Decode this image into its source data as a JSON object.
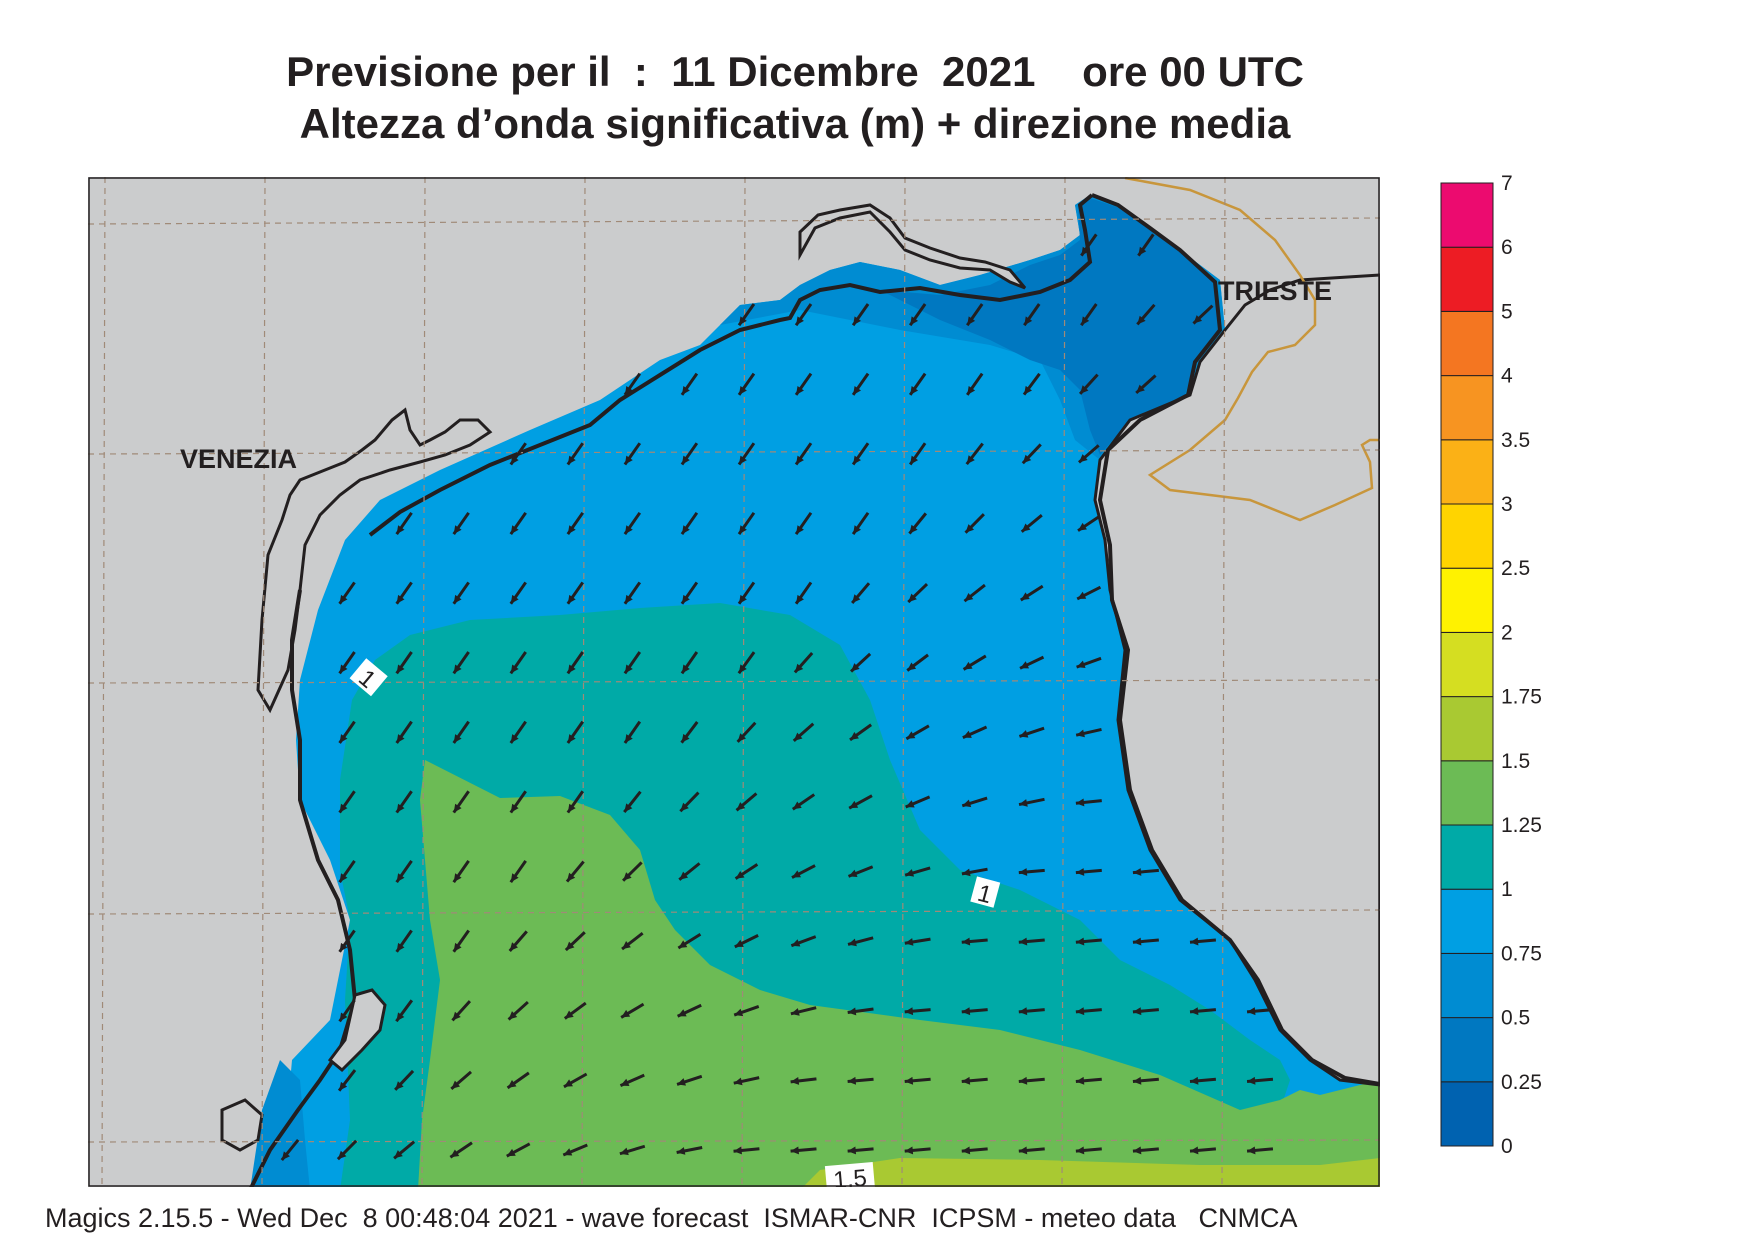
{
  "title": {
    "line1": "Previsione per il  :  11 Dicembre  2021    ore 00 UTC",
    "line2": "Altezza d’onda significativa (m) + direzione media"
  },
  "map": {
    "cities": [
      "VENEZIA",
      "TRIESTE"
    ],
    "contour_labels": [
      "1",
      "1",
      "1.5"
    ],
    "colors": {
      "land": "#cbcccd",
      "coastline": "#231f20",
      "border": "#c8963c",
      "grid": "#a08a78",
      "arrow": "#231f20"
    },
    "wave_zones_m": [
      {
        "range": "0.25-0.5",
        "color": "#0078c1"
      },
      {
        "range": "0.5-0.75",
        "color": "#008cd2"
      },
      {
        "range": "0.75-1",
        "color": "#009fe3"
      },
      {
        "range": "1-1.25",
        "color": "#00aaa7"
      },
      {
        "range": "1.25-1.5",
        "color": "#6cbb55"
      },
      {
        "range": "1.5-1.75",
        "color": "#a9c932"
      }
    ],
    "mean_direction": "waves propagating towards the south-west in the north/west, towards the west in the south-east"
  },
  "legend": {
    "unit": "m",
    "ticks": [
      "0",
      "0.25",
      "0.5",
      "0.75",
      "1",
      "1.25",
      "1.5",
      "1.75",
      "2",
      "2.5",
      "3",
      "3.5",
      "4",
      "5",
      "6",
      "7"
    ],
    "colors": [
      "#0062b0",
      "#0078c1",
      "#008cd2",
      "#009fe3",
      "#00aaa7",
      "#6cbb55",
      "#a9c932",
      "#d5de21",
      "#fff200",
      "#ffd400",
      "#fbb116",
      "#f79421",
      "#f47621",
      "#ed1c24",
      "#ec0b6f"
    ]
  },
  "footer": "Magics 2.15.5 - Wed Dec  8 00:48:04 2021 - wave forecast  ISMAR-CNR  ICPSM - meteo data   CNMCA"
}
